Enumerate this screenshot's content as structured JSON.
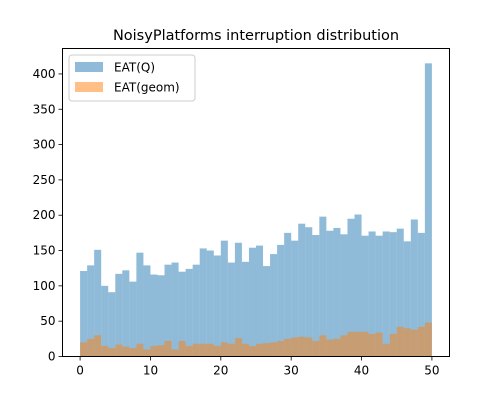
{
  "chart_data": {
    "type": "bar",
    "title": "NoisyPlatforms interruption distribution",
    "xlabel": "",
    "ylabel": "",
    "xlim": [
      -2.5,
      52.5
    ],
    "ylim": [
      0,
      436
    ],
    "x_ticks": [
      0,
      10,
      20,
      30,
      40,
      50
    ],
    "y_ticks": [
      0,
      50,
      100,
      150,
      200,
      250,
      300,
      350,
      400
    ],
    "grid": false,
    "legend_position": "top-left",
    "bin_width": 1,
    "bin_starts": [
      0,
      1,
      2,
      3,
      4,
      5,
      6,
      7,
      8,
      9,
      10,
      11,
      12,
      13,
      14,
      15,
      16,
      17,
      18,
      19,
      20,
      21,
      22,
      23,
      24,
      25,
      26,
      27,
      28,
      29,
      30,
      31,
      32,
      33,
      34,
      35,
      36,
      37,
      38,
      39,
      40,
      41,
      42,
      43,
      44,
      45,
      46,
      47,
      48,
      49
    ],
    "series": [
      {
        "name": "EAT(Q)",
        "color": "#1f77b4",
        "opacity": 0.5,
        "values": [
          121,
          129,
          151,
          100,
          91,
          117,
          122,
          106,
          147,
          129,
          116,
          115,
          130,
          133,
          120,
          124,
          130,
          153,
          150,
          143,
          164,
          133,
          161,
          134,
          154,
          157,
          128,
          145,
          158,
          175,
          164,
          188,
          183,
          172,
          198,
          178,
          182,
          173,
          195,
          201,
          171,
          177,
          171,
          177,
          176,
          181,
          163,
          194,
          175,
          415
        ]
      },
      {
        "name": "EAT(geom)",
        "color": "#ff7f0e",
        "opacity": 0.5,
        "values": [
          20,
          25,
          30,
          15,
          12,
          17,
          14,
          12,
          18,
          10,
          15,
          16,
          22,
          10,
          22,
          15,
          18,
          18,
          18,
          15,
          20,
          18,
          26,
          18,
          15,
          18,
          19,
          20,
          22,
          25,
          27,
          28,
          27,
          22,
          30,
          24,
          25,
          30,
          35,
          35,
          35,
          32,
          34,
          18,
          32,
          42,
          40,
          38,
          42,
          48
        ]
      }
    ]
  }
}
